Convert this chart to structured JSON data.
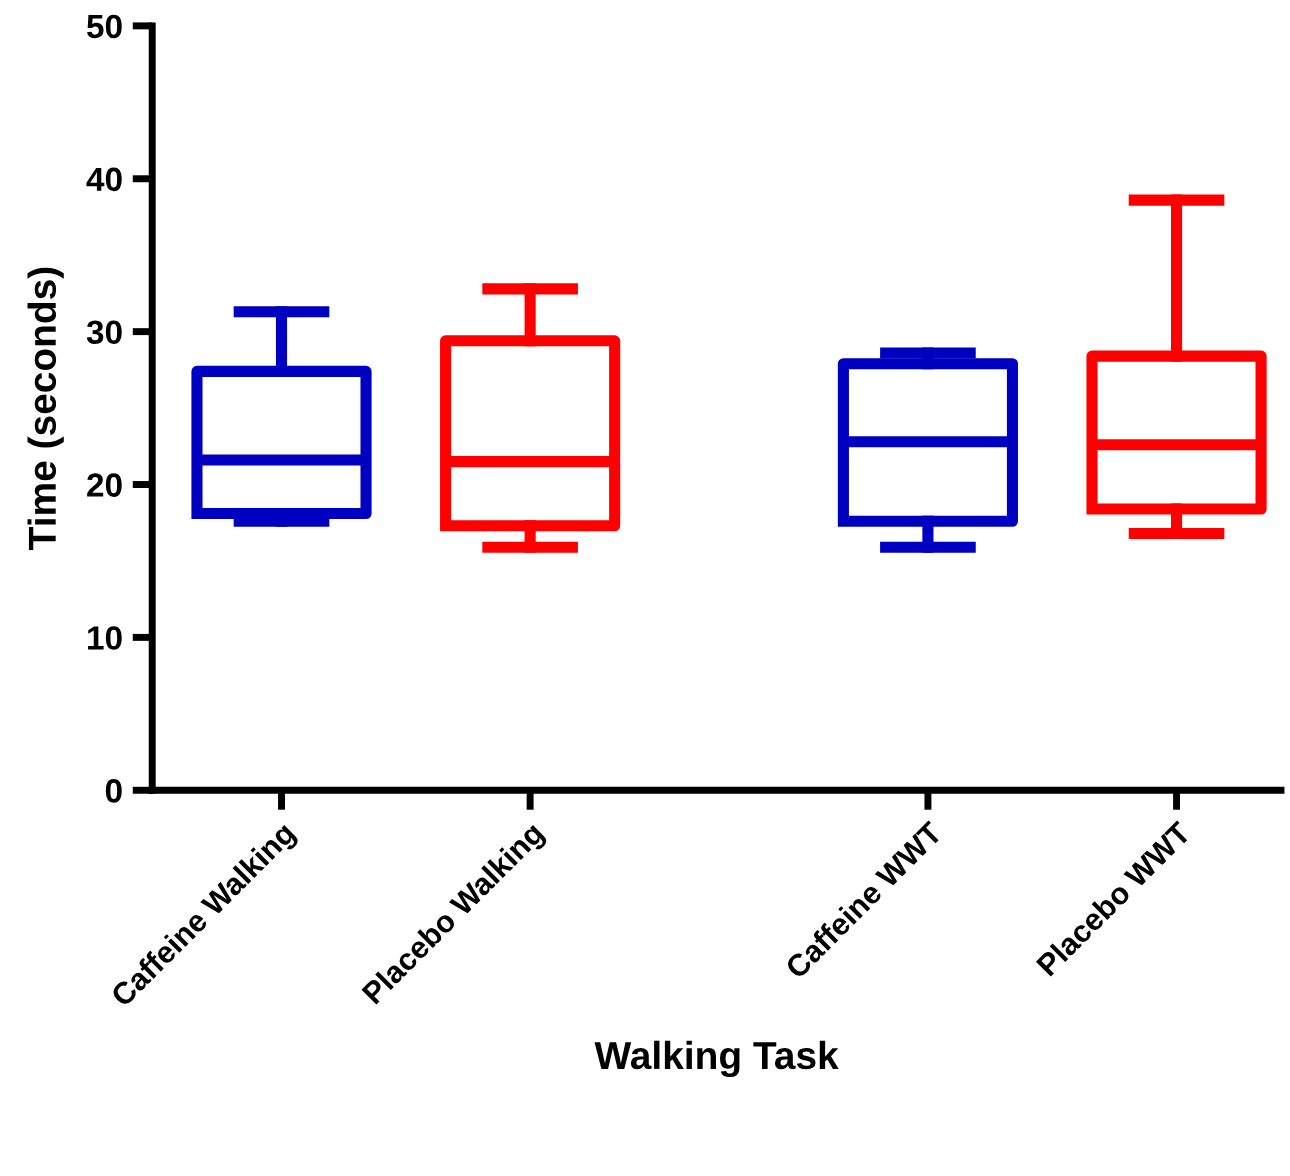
{
  "chart_data": {
    "type": "box",
    "xlabel": "Walking Task",
    "ylabel": "Time (seconds)",
    "categories": [
      "Caffeine Walking",
      "Placebo Walking",
      "Caffeine WWT",
      "Placebo WWT"
    ],
    "colors": [
      "#0000c0",
      "#ff0000",
      "#0000c0",
      "#ff0000"
    ],
    "boxes": [
      {
        "low": 17.6,
        "q1": 18.1,
        "median": 21.6,
        "q3": 27.4,
        "high": 31.3
      },
      {
        "low": 15.9,
        "q1": 17.3,
        "median": 21.5,
        "q3": 29.4,
        "high": 32.8
      },
      {
        "low": 15.9,
        "q1": 17.6,
        "median": 22.8,
        "q3": 27.9,
        "high": 28.6
      },
      {
        "low": 16.8,
        "q1": 18.4,
        "median": 22.6,
        "q3": 28.4,
        "high": 38.6
      }
    ],
    "ylim": [
      0,
      50
    ],
    "yticks": [
      0,
      10,
      20,
      30,
      40,
      50
    ],
    "grid": false
  }
}
